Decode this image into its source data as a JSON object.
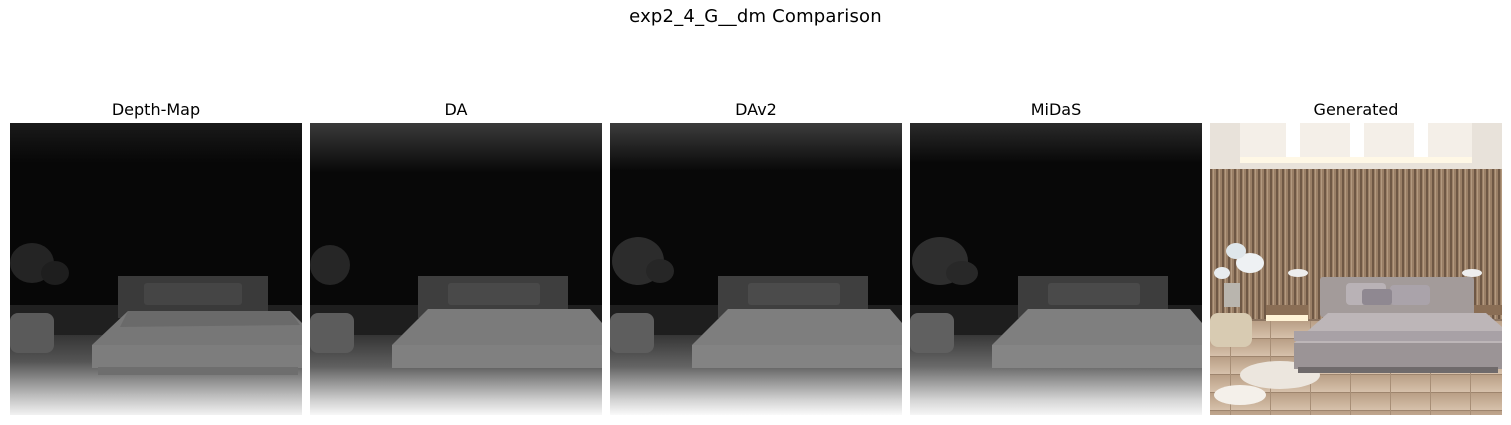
{
  "figure": {
    "title": "exp2_4_G__dm Comparison",
    "panels": [
      {
        "id": "depth-map",
        "label": "Depth-Map"
      },
      {
        "id": "da",
        "label": "DA"
      },
      {
        "id": "dav2",
        "label": "DAv2"
      },
      {
        "id": "midas",
        "label": "MiDaS"
      },
      {
        "id": "generated",
        "label": "Generated"
      }
    ]
  }
}
